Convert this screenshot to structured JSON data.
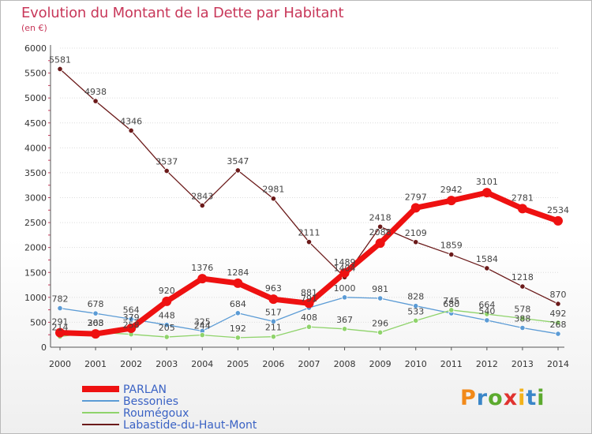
{
  "header": {
    "title": "Evolution du Montant de la Dette par Habitant",
    "unit": "(en €)"
  },
  "logo": {
    "letters": [
      "P",
      "r",
      "o",
      "x",
      "i",
      "t",
      "i"
    ]
  },
  "chart_data": {
    "type": "line",
    "categories": [
      "2000",
      "2001",
      "2002",
      "2003",
      "2004",
      "2005",
      "2006",
      "2007",
      "2008",
      "2009",
      "2010",
      "2011",
      "2012",
      "2013",
      "2014"
    ],
    "ylim": [
      0,
      6000
    ],
    "yticks": [
      0,
      500,
      1000,
      1500,
      2000,
      2500,
      3000,
      3500,
      4000,
      4500,
      5000,
      5500,
      6000
    ],
    "legend_position": "bottom-left",
    "series": [
      {
        "name": "Labastide-du-Haut-Mont",
        "color": "#6b1a1a",
        "values": [
          5581,
          4938,
          4346,
          3537,
          2843,
          3547,
          2981,
          2111,
          1404,
          2418,
          2109,
          1859,
          1584,
          1218,
          870
        ]
      },
      {
        "name": "Bessonies",
        "color": "#5b9bd5",
        "values": [
          782,
          678,
          564,
          448,
          325,
          684,
          517,
          791,
          1000,
          981,
          828,
          680,
          540,
          388,
          268
        ]
      },
      {
        "name": "Roumégoux",
        "color": "#8fd36b",
        "values": [
          214,
          303,
          258,
          205,
          244,
          192,
          211,
          408,
          367,
          296,
          533,
          745,
          664,
          578,
          492
        ]
      },
      {
        "name": "PARLAN",
        "color": "#ee1111",
        "values": [
          291,
          268,
          379,
          920,
          1376,
          1284,
          963,
          881,
          1489,
          2088,
          2797,
          2942,
          3101,
          2781,
          2534
        ]
      }
    ]
  }
}
